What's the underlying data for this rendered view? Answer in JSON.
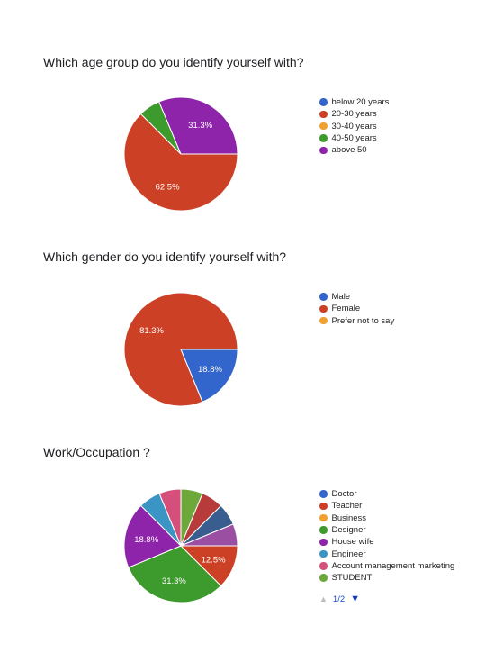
{
  "chart_data": [
    {
      "type": "pie",
      "title": "Which age group do you identify yourself with?",
      "categories": [
        "below 20 years",
        "20-30 years",
        "30-40 years",
        "40-50 years",
        "above 50"
      ],
      "values": [
        0,
        62.5,
        0,
        6.2,
        31.3
      ],
      "colors": [
        "#3366cc",
        "#cc4125",
        "#f1a130",
        "#3d9a2d",
        "#8e24aa"
      ],
      "labels": [
        "",
        "62.5%",
        "",
        "",
        "31.3%"
      ],
      "legend_position": "right"
    },
    {
      "type": "pie",
      "title": "Which gender do you identify yourself with?",
      "categories": [
        "Male",
        "Female",
        "Prefer not to say"
      ],
      "values": [
        18.8,
        81.3,
        0
      ],
      "colors": [
        "#3366cc",
        "#cc4125",
        "#f1a130"
      ],
      "labels": [
        "18.8%",
        "81.3%",
        ""
      ],
      "legend_position": "right"
    },
    {
      "type": "pie",
      "title": "Work/Occupation ?",
      "categories": [
        "Doctor",
        "Teacher",
        "Business",
        "Designer",
        "House wife",
        "Engineer",
        "Account management marketing",
        "STUDENT",
        "",
        "",
        ""
      ],
      "values": [
        0,
        12.5,
        0,
        31.3,
        18.8,
        6.25,
        6.25,
        6.25,
        6.25,
        6.25,
        6.25
      ],
      "colors": [
        "#3366cc",
        "#cc4125",
        "#f1a130",
        "#3d9a2d",
        "#8e24aa",
        "#3a95c4",
        "#d4507a",
        "#6da83a",
        "#b83b3b",
        "#3a5d8f",
        "#9b4fa3"
      ],
      "labels": [
        "",
        "12.5%",
        "",
        "31.3%",
        "18.8%",
        "",
        "",
        "",
        "",
        "",
        ""
      ],
      "legend_count": 8,
      "legend_position": "right",
      "pager": "1/2"
    }
  ]
}
